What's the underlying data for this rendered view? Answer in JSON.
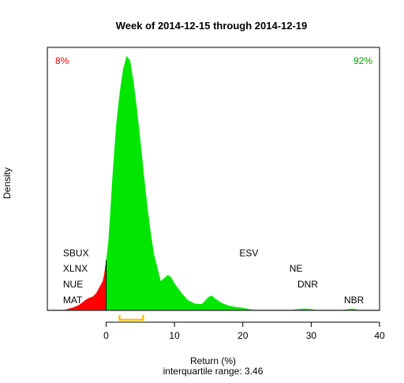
{
  "chart_data": {
    "type": "area",
    "title": "Week of 2014-12-15 through 2014-12-19",
    "xlabel": "Return (%)",
    "ylabel": "Density",
    "subtitle": "interquartile range: 3.46",
    "xlim": [
      -8.6,
      40
    ],
    "x_ticks": [
      0,
      10,
      20,
      30,
      40
    ],
    "grid": false,
    "pct_negative_label": "8%",
    "pct_positive_label": "92%",
    "colors": {
      "negative": "#ff0000",
      "positive": "#00e600",
      "iqr": "#ffc000",
      "baseline": "#bebebe",
      "axis": "#000000"
    },
    "iqr": {
      "q1": 1.95,
      "q3": 5.41
    },
    "density": {
      "x": [
        -6.8,
        -6.0,
        -5.0,
        -4.0,
        -3.0,
        -2.5,
        -2.0,
        -1.5,
        -1.0,
        -0.5,
        -0.3,
        0.0,
        0.3,
        0.6,
        1.0,
        1.5,
        2.0,
        2.5,
        3.0,
        3.5,
        4.0,
        4.5,
        5.0,
        5.5,
        6.0,
        6.5,
        7.0,
        8.0,
        9.0,
        9.5,
        10.0,
        11.0,
        12.0,
        13.0,
        14.0,
        15.0,
        15.5,
        16.0,
        17.0,
        18.0,
        19.0,
        20.0,
        21.0,
        22.0,
        23.0,
        26.0,
        27.0,
        28.0,
        29.0,
        30.0,
        31.0,
        34.0,
        35.0,
        36.0,
        36.5,
        37.0,
        38.0
      ],
      "y": [
        0.0,
        0.004,
        0.012,
        0.025,
        0.05,
        0.06,
        0.065,
        0.08,
        0.11,
        0.14,
        0.17,
        0.24,
        0.32,
        0.47,
        0.68,
        0.9,
        1.05,
        1.16,
        1.22,
        1.2,
        1.1,
        0.97,
        0.82,
        0.66,
        0.51,
        0.38,
        0.27,
        0.14,
        0.17,
        0.16,
        0.13,
        0.085,
        0.048,
        0.032,
        0.03,
        0.065,
        0.07,
        0.055,
        0.034,
        0.022,
        0.016,
        0.012,
        0.006,
        0.002,
        0.0,
        0.0,
        0.002,
        0.006,
        0.008,
        0.006,
        0.0,
        0.0,
        0.004,
        0.008,
        0.006,
        0.002,
        0.0
      ]
    },
    "annotations": [
      {
        "text": "SBUX",
        "x": -6.3,
        "y": 0.26
      },
      {
        "text": "XLNX",
        "x": -6.3,
        "y": 0.185
      },
      {
        "text": "NUE",
        "x": -6.3,
        "y": 0.11
      },
      {
        "text": "MAT",
        "x": -6.3,
        "y": 0.035
      },
      {
        "text": "ESV",
        "x": 19.5,
        "y": 0.26
      },
      {
        "text": "NE",
        "x": 26.8,
        "y": 0.185
      },
      {
        "text": "DNR",
        "x": 28.0,
        "y": 0.11
      },
      {
        "text": "NBR",
        "x": 34.8,
        "y": 0.035
      }
    ]
  }
}
